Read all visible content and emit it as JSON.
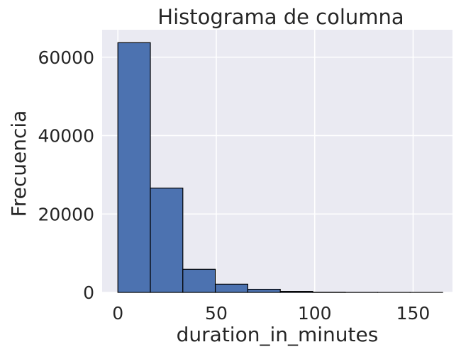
{
  "chart_data": {
    "type": "bar",
    "title": "Histograma de columna",
    "xlabel": "duration_in_minutes",
    "ylabel": "Frecuencia",
    "xlim": [
      -8,
      170
    ],
    "ylim": [
      0,
      67000
    ],
    "xticks": [
      0,
      50,
      100,
      150
    ],
    "yticks": [
      0,
      20000,
      40000,
      60000
    ],
    "xtick_labels": [
      "0",
      "50",
      "100",
      "150"
    ],
    "ytick_labels": [
      "0",
      "20000",
      "40000",
      "60000"
    ],
    "grid": true,
    "bins": [
      {
        "x0": 0,
        "x1": 16.5,
        "value": 63700
      },
      {
        "x0": 16.5,
        "x1": 33,
        "value": 26600
      },
      {
        "x0": 33,
        "x1": 49.5,
        "value": 5900
      },
      {
        "x0": 49.5,
        "x1": 66,
        "value": 2100
      },
      {
        "x0": 66,
        "x1": 82.5,
        "value": 800
      },
      {
        "x0": 82.5,
        "x1": 99,
        "value": 250
      },
      {
        "x0": 99,
        "x1": 115.5,
        "value": 60
      },
      {
        "x0": 115.5,
        "x1": 132,
        "value": 20
      },
      {
        "x0": 132,
        "x1": 148.5,
        "value": 8
      },
      {
        "x0": 148.5,
        "x1": 165,
        "value": 3
      }
    ],
    "colors": {
      "bar": "#4c72b0",
      "edge": "#000000",
      "background": "#eaeaf2",
      "grid": "#ffffff"
    }
  }
}
